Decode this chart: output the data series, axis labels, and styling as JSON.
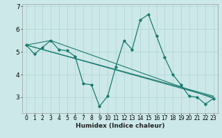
{
  "title": "",
  "xlabel": "Humidex (Indice chaleur)",
  "ylabel": "",
  "xlim": [
    -0.5,
    23.5
  ],
  "ylim": [
    2.3,
    7.1
  ],
  "xticks": [
    0,
    1,
    2,
    3,
    4,
    5,
    6,
    7,
    8,
    9,
    10,
    11,
    12,
    13,
    14,
    15,
    16,
    17,
    18,
    19,
    20,
    21,
    22,
    23
  ],
  "yticks": [
    3,
    4,
    5,
    6,
    7
  ],
  "bg_color": "#cce8e8",
  "grid_color": "#b0d4d4",
  "line_color": "#1a7a6e",
  "lines": [
    {
      "x": [
        0,
        1,
        2,
        3,
        4,
        5,
        6,
        7,
        8,
        9,
        10,
        11,
        12,
        13,
        14,
        15,
        16,
        17,
        18,
        19,
        20,
        21,
        22,
        23
      ],
      "y": [
        5.3,
        4.9,
        5.2,
        5.5,
        5.1,
        5.05,
        4.8,
        3.6,
        3.55,
        2.6,
        3.05,
        4.35,
        5.5,
        5.1,
        6.4,
        6.65,
        5.7,
        4.75,
        4.0,
        3.55,
        3.05,
        3.0,
        2.7,
        2.95
      ],
      "marker": true
    },
    {
      "x": [
        0,
        3,
        23
      ],
      "y": [
        5.3,
        5.5,
        2.95
      ],
      "marker": false
    },
    {
      "x": [
        0,
        23
      ],
      "y": [
        5.3,
        3.0
      ],
      "marker": false
    },
    {
      "x": [
        0,
        23
      ],
      "y": [
        5.3,
        3.05
      ],
      "marker": false
    }
  ]
}
